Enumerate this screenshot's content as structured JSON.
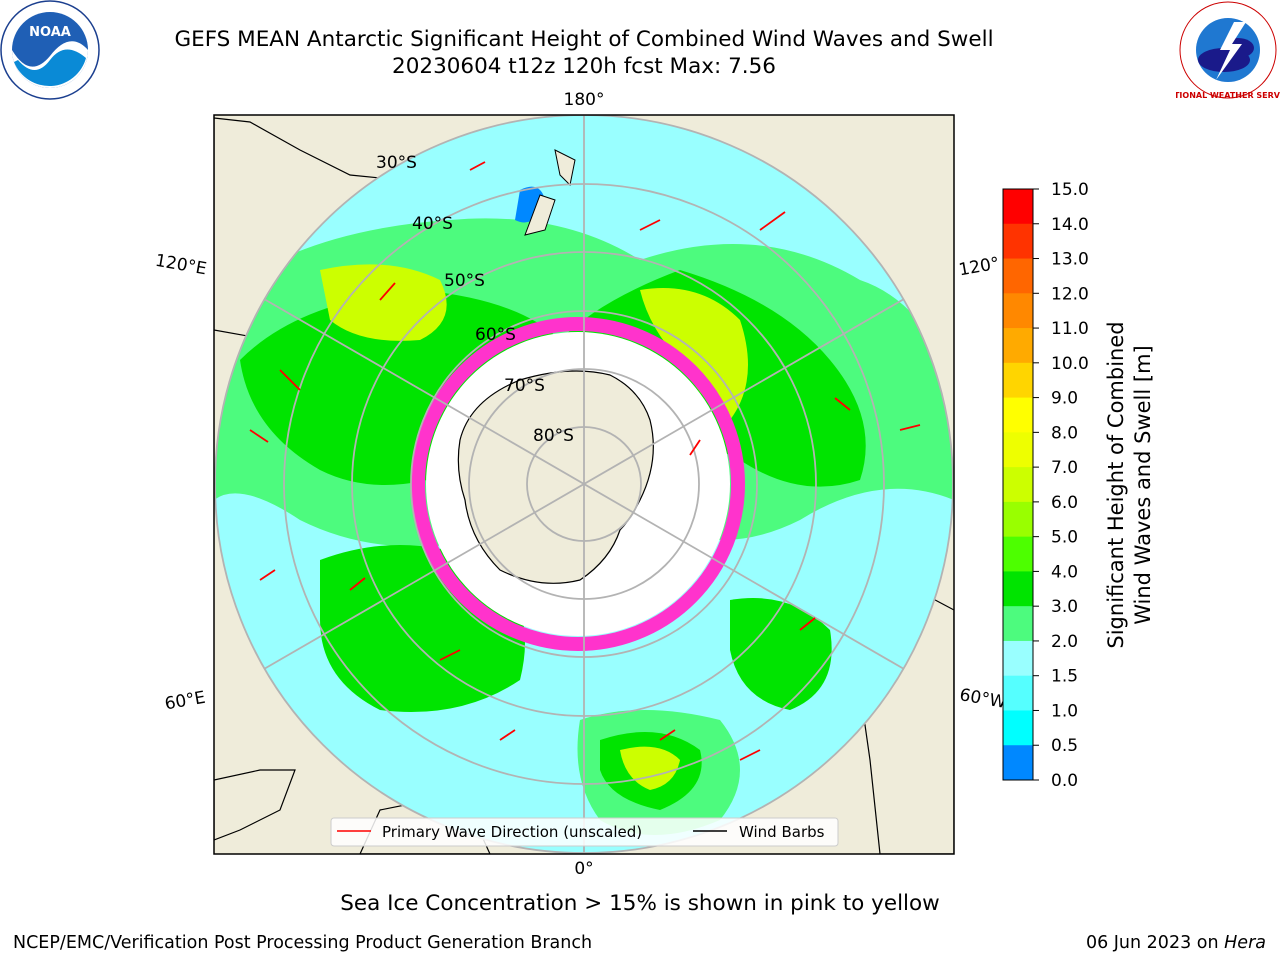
{
  "header": {
    "title_line1": "GEFS MEAN Antarctic Significant Height of Combined Wind Waves and Swell",
    "title_line2": "20230604 t12z 120h fcst   Max: 7.56"
  },
  "logos": {
    "left": {
      "icon": "noaa-logo",
      "text": "NOAA"
    },
    "right": {
      "icon": "nws-logo",
      "text": "NATIONAL WEATHER SERVICE"
    }
  },
  "map": {
    "longitude_labels": {
      "top": "180°",
      "bottom": "0°",
      "left_upper": "120°E",
      "left_lower": "60°E",
      "right_upper": "120°",
      "right_lower": "60°W"
    },
    "latitude_labels": [
      "30°S",
      "40°S",
      "50°S",
      "60°S",
      "70°S",
      "80°S"
    ],
    "legend": {
      "wave_direction": "Primary Wave Direction (unscaled)",
      "wind_barbs": "Wind Barbs"
    },
    "colors": {
      "land": "#efecda",
      "ocean_low": "#99ffff",
      "ocean_mid": "#4dfb7e",
      "ocean_high": "#00e400",
      "ice": "#ff33cc"
    }
  },
  "colorbar": {
    "label_line1": "Significant Height of Combined",
    "label_line2": "Wind Waves and Swell [m]",
    "ticks": [
      "15.0",
      "14.0",
      "13.0",
      "12.0",
      "11.0",
      "10.0",
      "9.0",
      "8.0",
      "7.0",
      "6.0",
      "5.0",
      "4.0",
      "3.0",
      "2.0",
      "1.5",
      "1.0",
      "0.5",
      "0.0"
    ],
    "colors": [
      "#ff0000",
      "#ff3300",
      "#ff6600",
      "#ff8800",
      "#ffaa00",
      "#ffd500",
      "#ffff00",
      "#eeff00",
      "#ccff00",
      "#99ff00",
      "#4dff00",
      "#00e400",
      "#4dfb7e",
      "#99ffff",
      "#55ffff",
      "#00ffff",
      "#0088ff",
      "#0000ff"
    ]
  },
  "footer": {
    "note": "Sea Ice Concentration > 15% is shown in pink to yellow",
    "credit_left": "NCEP/EMC/Verification Post Processing Product Generation Branch",
    "credit_right_date": "06 Jun 2023 on ",
    "credit_right_machine": "Hera"
  }
}
